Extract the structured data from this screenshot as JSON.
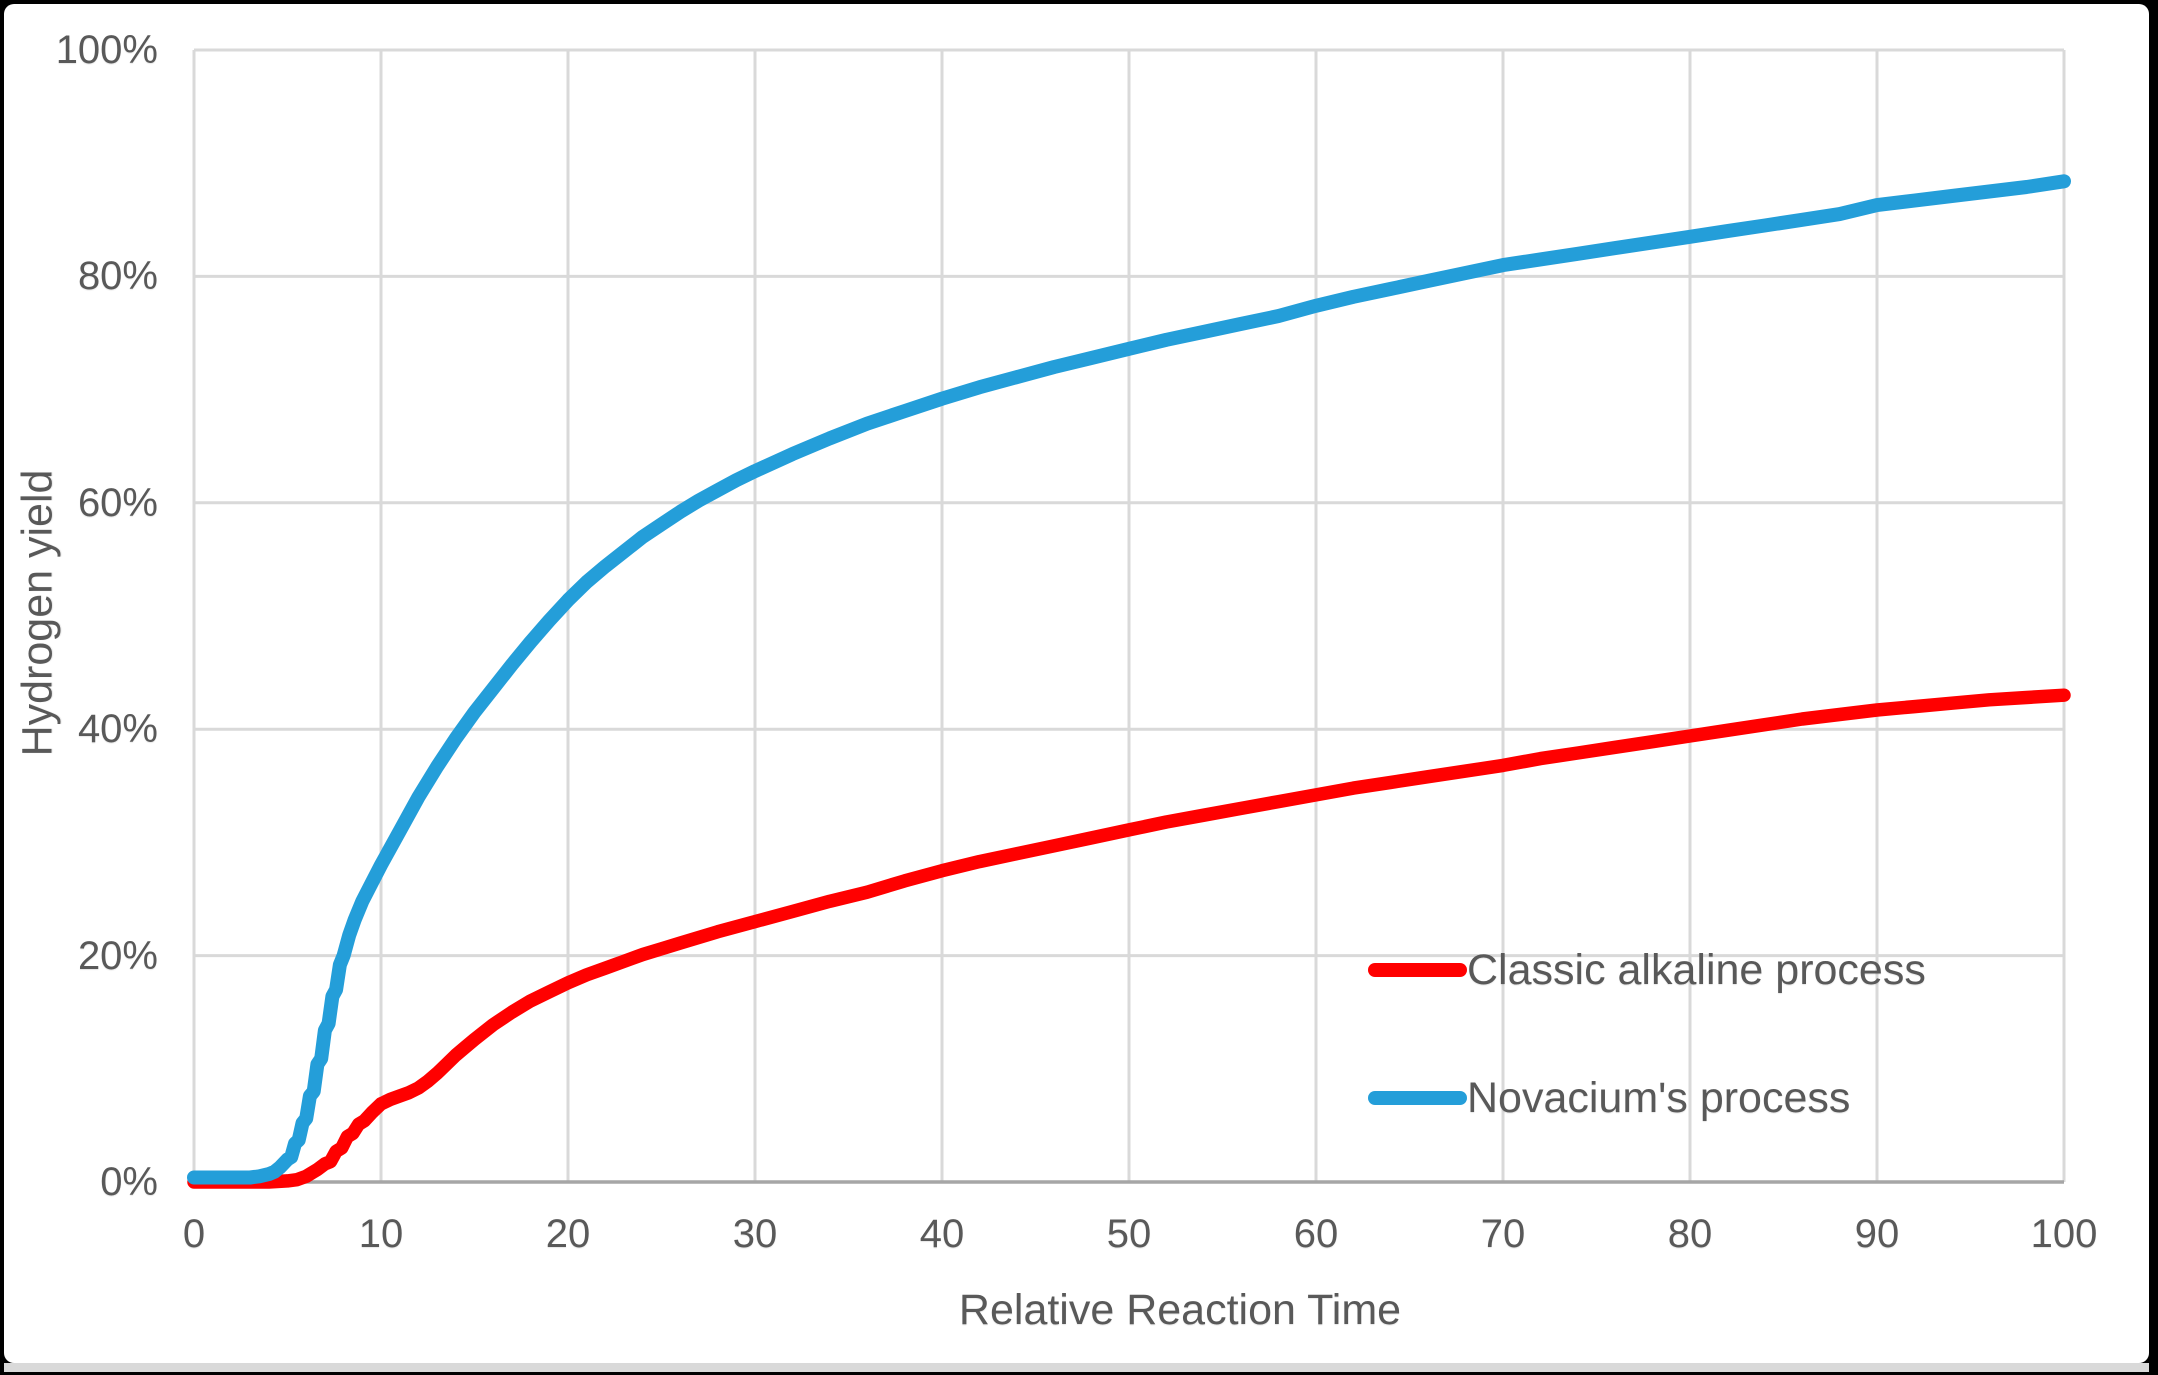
{
  "chart_data": {
    "type": "line",
    "title": "",
    "xlabel": "Relative Reaction Time",
    "ylabel": "Hydrogen yield",
    "xlim": [
      0,
      100
    ],
    "ylim": [
      0,
      100
    ],
    "x_ticks": [
      0,
      10,
      20,
      30,
      40,
      50,
      60,
      70,
      80,
      90,
      100
    ],
    "x_tick_labels": [
      "0",
      "10",
      "20",
      "30",
      "40",
      "50",
      "60",
      "70",
      "80",
      "90",
      "100"
    ],
    "y_ticks": [
      0,
      20,
      40,
      60,
      80,
      100
    ],
    "y_tick_labels": [
      "0%",
      "20%",
      "40%",
      "60%",
      "80%",
      "100%"
    ],
    "grid": true,
    "legend_position": "inside-right",
    "series": [
      {
        "name": "Classic alkaline process",
        "color": "#FF0000",
        "stroke_width": 13.5,
        "points": [
          [
            0,
            0
          ],
          [
            2,
            0
          ],
          [
            4,
            0
          ],
          [
            5,
            0.1
          ],
          [
            5.5,
            0.2
          ],
          [
            6,
            0.5
          ],
          [
            6.3,
            0.8
          ],
          [
            6.6,
            1.1
          ],
          [
            7,
            1.6
          ],
          [
            7.3,
            1.8
          ],
          [
            7.6,
            2.7
          ],
          [
            7.9,
            3.0
          ],
          [
            8.2,
            4.0
          ],
          [
            8.5,
            4.3
          ],
          [
            8.8,
            5.1
          ],
          [
            9.1,
            5.4
          ],
          [
            9.5,
            6.1
          ],
          [
            10,
            6.9
          ],
          [
            10.5,
            7.3
          ],
          [
            11,
            7.6
          ],
          [
            11.5,
            7.9
          ],
          [
            12,
            8.3
          ],
          [
            12.5,
            8.9
          ],
          [
            13,
            9.6
          ],
          [
            13.5,
            10.4
          ],
          [
            14,
            11.2
          ],
          [
            14.5,
            11.9
          ],
          [
            15,
            12.6
          ],
          [
            16,
            13.9
          ],
          [
            17,
            15.0
          ],
          [
            18,
            16.0
          ],
          [
            19,
            16.8
          ],
          [
            20,
            17.6
          ],
          [
            21,
            18.3
          ],
          [
            22,
            18.9
          ],
          [
            23,
            19.5
          ],
          [
            24,
            20.1
          ],
          [
            25,
            20.6
          ],
          [
            26,
            21.1
          ],
          [
            28,
            22.1
          ],
          [
            30,
            23.0
          ],
          [
            32,
            23.9
          ],
          [
            34,
            24.8
          ],
          [
            36,
            25.6
          ],
          [
            38,
            26.6
          ],
          [
            40,
            27.5
          ],
          [
            42,
            28.3
          ],
          [
            44,
            29.0
          ],
          [
            46,
            29.7
          ],
          [
            48,
            30.4
          ],
          [
            50,
            31.1
          ],
          [
            52,
            31.8
          ],
          [
            54,
            32.4
          ],
          [
            56,
            33.0
          ],
          [
            58,
            33.6
          ],
          [
            60,
            34.2
          ],
          [
            62,
            34.8
          ],
          [
            64,
            35.3
          ],
          [
            66,
            35.8
          ],
          [
            68,
            36.3
          ],
          [
            70,
            36.8
          ],
          [
            72,
            37.4
          ],
          [
            74,
            37.9
          ],
          [
            76,
            38.4
          ],
          [
            78,
            38.9
          ],
          [
            80,
            39.4
          ],
          [
            82,
            39.9
          ],
          [
            84,
            40.4
          ],
          [
            86,
            40.9
          ],
          [
            88,
            41.3
          ],
          [
            90,
            41.7
          ],
          [
            92,
            42.0
          ],
          [
            94,
            42.3
          ],
          [
            96,
            42.6
          ],
          [
            98,
            42.8
          ],
          [
            100,
            43.0
          ]
        ]
      },
      {
        "name": "Novacium's process",
        "color": "#249ED9",
        "stroke_width": 14,
        "points": [
          [
            0,
            0.4
          ],
          [
            2,
            0.4
          ],
          [
            3,
            0.4
          ],
          [
            3.5,
            0.5
          ],
          [
            4,
            0.7
          ],
          [
            4.3,
            0.9
          ],
          [
            4.6,
            1.3
          ],
          [
            5,
            2.0
          ],
          [
            5.2,
            2.2
          ],
          [
            5.4,
            3.4
          ],
          [
            5.6,
            3.7
          ],
          [
            5.8,
            5.2
          ],
          [
            6.0,
            5.6
          ],
          [
            6.2,
            7.6
          ],
          [
            6.4,
            8.0
          ],
          [
            6.6,
            10.4
          ],
          [
            6.8,
            10.9
          ],
          [
            7.0,
            13.4
          ],
          [
            7.2,
            14.0
          ],
          [
            7.4,
            16.4
          ],
          [
            7.6,
            17.0
          ],
          [
            7.8,
            19.2
          ],
          [
            8.0,
            20.0
          ],
          [
            8.3,
            21.8
          ],
          [
            8.6,
            23.2
          ],
          [
            9.0,
            24.8
          ],
          [
            9.5,
            26.4
          ],
          [
            10,
            28.0
          ],
          [
            11,
            31.0
          ],
          [
            12,
            34.0
          ],
          [
            13,
            36.7
          ],
          [
            14,
            39.2
          ],
          [
            15,
            41.5
          ],
          [
            16,
            43.6
          ],
          [
            17,
            45.7
          ],
          [
            18,
            47.7
          ],
          [
            19,
            49.6
          ],
          [
            20,
            51.4
          ],
          [
            21,
            53.0
          ],
          [
            22,
            54.4
          ],
          [
            23,
            55.7
          ],
          [
            24,
            57.0
          ],
          [
            25,
            58.1
          ],
          [
            26,
            59.2
          ],
          [
            27,
            60.2
          ],
          [
            28,
            61.1
          ],
          [
            29,
            62.0
          ],
          [
            30,
            62.8
          ],
          [
            32,
            64.3
          ],
          [
            34,
            65.7
          ],
          [
            36,
            67.0
          ],
          [
            38,
            68.1
          ],
          [
            40,
            69.2
          ],
          [
            42,
            70.2
          ],
          [
            44,
            71.1
          ],
          [
            46,
            72.0
          ],
          [
            48,
            72.8
          ],
          [
            50,
            73.6
          ],
          [
            52,
            74.4
          ],
          [
            54,
            75.1
          ],
          [
            56,
            75.8
          ],
          [
            58,
            76.5
          ],
          [
            60,
            77.4
          ],
          [
            62,
            78.2
          ],
          [
            64,
            78.9
          ],
          [
            66,
            79.6
          ],
          [
            68,
            80.3
          ],
          [
            70,
            81.0
          ],
          [
            72,
            81.5
          ],
          [
            74,
            82.0
          ],
          [
            76,
            82.5
          ],
          [
            78,
            83.0
          ],
          [
            80,
            83.5
          ],
          [
            82,
            84.0
          ],
          [
            84,
            84.5
          ],
          [
            86,
            85.0
          ],
          [
            88,
            85.5
          ],
          [
            90,
            86.3
          ],
          [
            92,
            86.7
          ],
          [
            94,
            87.1
          ],
          [
            96,
            87.5
          ],
          [
            98,
            87.9
          ],
          [
            100,
            88.4
          ]
        ]
      }
    ]
  },
  "colors": {
    "background": "#FFFFFF",
    "frame": "#000000",
    "bottom_strip": "#D9D9D9",
    "gridline": "#D9D9D9",
    "axis_line": "#A6A6A6",
    "tick_text": "#595959"
  }
}
